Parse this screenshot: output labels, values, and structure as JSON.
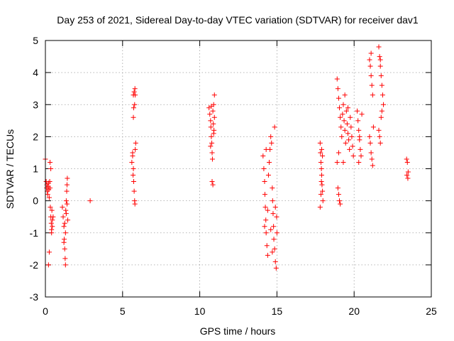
{
  "chart_data": {
    "type": "scatter",
    "title": "Day 253 of 2021, Sidereal Day-to-day VTEC variation (SDTVAR) for receiver dav1",
    "xlabel": "GPS time / hours",
    "ylabel": "SDTVAR / TECUs",
    "xlim": [
      0,
      25
    ],
    "ylim": [
      -3,
      5
    ],
    "xticks": [
      0,
      5,
      10,
      15,
      20,
      25
    ],
    "yticks": [
      -3,
      -2,
      -1,
      0,
      1,
      2,
      3,
      4,
      5
    ],
    "xtick_labels": [
      "0",
      "5",
      "10",
      "15",
      "20",
      "25"
    ],
    "ytick_labels": [
      "-3",
      "-2",
      "-1",
      "0",
      "1",
      "2",
      "3",
      "4",
      "5"
    ],
    "grid": true,
    "marker": "plus",
    "color": "#ff0000",
    "series": [
      {
        "name": "SDTVAR",
        "points": [
          [
            0.0,
            1.3
          ],
          [
            0.05,
            0.6
          ],
          [
            0.08,
            0.4
          ],
          [
            0.1,
            0.5
          ],
          [
            0.12,
            0.3
          ],
          [
            0.15,
            0.2
          ],
          [
            0.18,
            0.45
          ],
          [
            0.2,
            0.55
          ],
          [
            0.22,
            0.35
          ],
          [
            0.25,
            0.1
          ],
          [
            0.28,
            0.6
          ],
          [
            0.3,
            0.4
          ],
          [
            0.32,
            -0.2
          ],
          [
            0.35,
            -0.5
          ],
          [
            0.38,
            -0.7
          ],
          [
            0.4,
            -0.9
          ],
          [
            0.42,
            -0.3
          ],
          [
            0.45,
            -0.6
          ],
          [
            0.3,
            1.2
          ],
          [
            0.35,
            1.0
          ],
          [
            0.25,
            -1.6
          ],
          [
            0.2,
            -2.0
          ],
          [
            0.4,
            -1.0
          ],
          [
            0.45,
            -0.8
          ],
          [
            0.5,
            -0.5
          ],
          [
            1.1,
            -0.2
          ],
          [
            1.15,
            -0.5
          ],
          [
            1.2,
            -0.8
          ],
          [
            1.22,
            -1.2
          ],
          [
            1.25,
            -1.5
          ],
          [
            1.28,
            -1.8
          ],
          [
            1.3,
            -2.0
          ],
          [
            1.32,
            -0.3
          ],
          [
            1.35,
            0.0
          ],
          [
            1.38,
            0.3
          ],
          [
            1.4,
            0.5
          ],
          [
            1.42,
            0.7
          ],
          [
            1.45,
            -0.6
          ],
          [
            1.3,
            -1.0
          ],
          [
            1.25,
            -0.7
          ],
          [
            1.35,
            -0.4
          ],
          [
            1.4,
            -0.1
          ],
          [
            1.2,
            -1.3
          ],
          [
            2.9,
            0.0
          ],
          [
            5.6,
            1.2
          ],
          [
            5.65,
            1.4
          ],
          [
            5.7,
            1.0
          ],
          [
            5.72,
            0.6
          ],
          [
            5.75,
            0.3
          ],
          [
            5.78,
            0.0
          ],
          [
            5.8,
            -0.1
          ],
          [
            5.82,
            1.6
          ],
          [
            5.85,
            1.8
          ],
          [
            5.7,
            3.3
          ],
          [
            5.75,
            3.4
          ],
          [
            5.8,
            3.5
          ],
          [
            5.78,
            3.0
          ],
          [
            5.72,
            2.9
          ],
          [
            5.7,
            2.6
          ],
          [
            5.82,
            3.3
          ],
          [
            5.65,
            1.5
          ],
          [
            5.68,
            0.8
          ],
          [
            10.6,
            2.9
          ],
          [
            10.65,
            2.7
          ],
          [
            10.7,
            2.5
          ],
          [
            10.72,
            2.3
          ],
          [
            10.75,
            2.0
          ],
          [
            10.78,
            1.8
          ],
          [
            10.8,
            1.5
          ],
          [
            10.82,
            1.3
          ],
          [
            10.85,
            2.8
          ],
          [
            10.9,
            3.0
          ],
          [
            10.95,
            2.6
          ],
          [
            10.88,
            2.4
          ],
          [
            10.92,
            2.2
          ],
          [
            10.7,
            1.7
          ],
          [
            10.8,
            0.6
          ],
          [
            10.85,
            0.5
          ],
          [
            10.95,
            3.3
          ],
          [
            10.75,
            2.95
          ],
          [
            10.9,
            2.1
          ],
          [
            14.1,
            1.4
          ],
          [
            14.15,
            1.0
          ],
          [
            14.2,
            0.6
          ],
          [
            14.22,
            0.2
          ],
          [
            14.25,
            -0.2
          ],
          [
            14.28,
            -0.6
          ],
          [
            14.3,
            -1.0
          ],
          [
            14.35,
            -1.4
          ],
          [
            14.4,
            -1.7
          ],
          [
            14.45,
            0.8
          ],
          [
            14.5,
            1.2
          ],
          [
            14.55,
            1.6
          ],
          [
            14.6,
            2.0
          ],
          [
            14.65,
            1.8
          ],
          [
            14.7,
            0.4
          ],
          [
            14.72,
            0.0
          ],
          [
            14.75,
            -0.4
          ],
          [
            14.78,
            -0.8
          ],
          [
            14.8,
            -1.2
          ],
          [
            14.85,
            -1.5
          ],
          [
            14.9,
            -1.9
          ],
          [
            14.95,
            -2.1
          ],
          [
            14.98,
            -0.5
          ],
          [
            15.0,
            -1.0
          ],
          [
            14.85,
            2.3
          ],
          [
            14.3,
            1.6
          ],
          [
            14.4,
            -0.3
          ],
          [
            14.6,
            -0.9
          ],
          [
            14.7,
            -1.6
          ],
          [
            14.2,
            -0.8
          ],
          [
            14.9,
            -0.2
          ],
          [
            17.8,
            1.8
          ],
          [
            17.82,
            1.5
          ],
          [
            17.85,
            1.2
          ],
          [
            17.88,
            1.0
          ],
          [
            17.9,
            0.8
          ],
          [
            17.92,
            0.5
          ],
          [
            17.95,
            0.3
          ],
          [
            17.98,
            0.0
          ],
          [
            17.8,
            -0.2
          ],
          [
            17.85,
            0.2
          ],
          [
            17.9,
            1.6
          ],
          [
            17.95,
            1.4
          ],
          [
            17.88,
            0.6
          ],
          [
            18.9,
            3.8
          ],
          [
            18.95,
            3.5
          ],
          [
            19.0,
            3.2
          ],
          [
            19.05,
            2.9
          ],
          [
            19.1,
            2.6
          ],
          [
            19.15,
            2.3
          ],
          [
            19.2,
            2.0
          ],
          [
            19.25,
            2.7
          ],
          [
            19.3,
            3.0
          ],
          [
            19.35,
            2.5
          ],
          [
            19.4,
            2.2
          ],
          [
            19.45,
            1.8
          ],
          [
            19.5,
            2.8
          ],
          [
            19.55,
            2.4
          ],
          [
            19.6,
            2.1
          ],
          [
            19.65,
            1.9
          ],
          [
            19.7,
            1.6
          ],
          [
            19.75,
            2.6
          ],
          [
            19.8,
            2.3
          ],
          [
            19.85,
            2.0
          ],
          [
            19.9,
            1.7
          ],
          [
            19.95,
            1.4
          ],
          [
            19.0,
            0.2
          ],
          [
            19.05,
            0.0
          ],
          [
            19.1,
            -0.1
          ],
          [
            18.95,
            0.4
          ],
          [
            19.0,
            1.5
          ],
          [
            18.9,
            1.2
          ],
          [
            19.4,
            3.3
          ],
          [
            19.6,
            2.9
          ],
          [
            19.3,
            1.2
          ],
          [
            20.2,
            2.8
          ],
          [
            20.25,
            2.5
          ],
          [
            20.3,
            2.2
          ],
          [
            20.35,
            1.9
          ],
          [
            20.4,
            1.6
          ],
          [
            20.45,
            1.4
          ],
          [
            20.5,
            2.7
          ],
          [
            20.3,
            1.2
          ],
          [
            20.35,
            2.0
          ],
          [
            21.0,
            4.4
          ],
          [
            21.05,
            4.2
          ],
          [
            21.1,
            3.9
          ],
          [
            21.15,
            3.6
          ],
          [
            21.2,
            3.3
          ],
          [
            21.0,
            2.0
          ],
          [
            21.05,
            1.8
          ],
          [
            21.1,
            1.5
          ],
          [
            21.15,
            1.3
          ],
          [
            21.2,
            1.1
          ],
          [
            21.25,
            2.3
          ],
          [
            21.1,
            4.6
          ],
          [
            21.6,
            4.8
          ],
          [
            21.65,
            4.5
          ],
          [
            21.7,
            4.2
          ],
          [
            21.75,
            3.9
          ],
          [
            21.8,
            3.6
          ],
          [
            21.85,
            3.3
          ],
          [
            21.9,
            3.0
          ],
          [
            21.6,
            2.2
          ],
          [
            21.65,
            2.0
          ],
          [
            21.7,
            1.8
          ],
          [
            21.75,
            2.6
          ],
          [
            21.8,
            2.8
          ],
          [
            21.7,
            4.4
          ],
          [
            23.4,
            1.3
          ],
          [
            23.45,
            1.2
          ],
          [
            23.5,
            0.9
          ],
          [
            23.42,
            0.8
          ],
          [
            23.48,
            0.7
          ]
        ]
      }
    ]
  }
}
